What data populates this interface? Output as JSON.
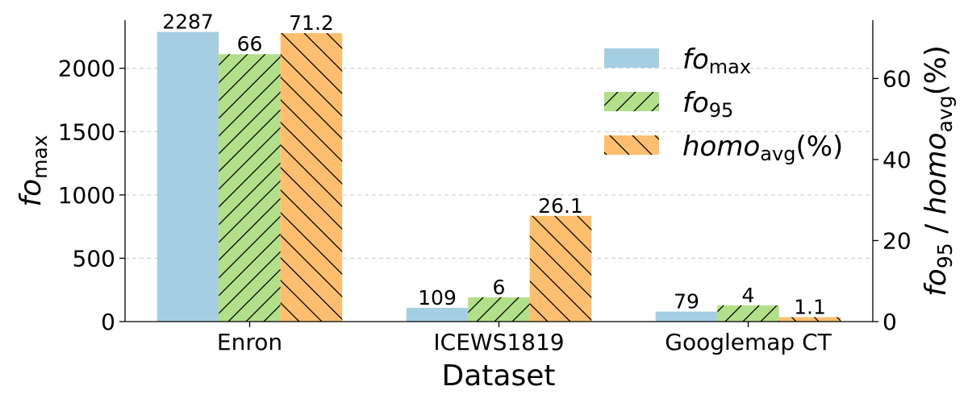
{
  "chart_data": {
    "type": "bar",
    "categories": [
      "Enron",
      "ICEWS1819",
      "Googlemap CT"
    ],
    "xlabel": "Dataset",
    "ylabel_left": {
      "main": "fo",
      "sub": "max"
    },
    "ylabel_right": {
      "part1": "fo",
      "sub1": "95",
      "mid": " / ",
      "part2": "homo",
      "sub2": "avg",
      "tail": "(%)"
    },
    "ylim_left": [
      0,
      2380
    ],
    "ylim_right": [
      0,
      74.4
    ],
    "yticks_left": [
      0,
      500,
      1000,
      1500,
      2000
    ],
    "yticks_right": [
      0,
      20,
      40,
      60
    ],
    "grid": "horizontal-dashed",
    "legend_position": "top-right",
    "series": [
      {
        "name_main": "fo",
        "name_sub": "max",
        "name_tail": "",
        "axis": "left",
        "color": "#a6cee3",
        "hatch": "none",
        "values": [
          2287,
          109,
          79
        ],
        "labels": [
          "2287",
          "109",
          "79"
        ]
      },
      {
        "name_main": "fo",
        "name_sub": "95",
        "name_tail": "",
        "axis": "right",
        "color": "#b2df8a",
        "hatch": "forward",
        "values": [
          66,
          6,
          4
        ],
        "labels": [
          "66",
          "6",
          "4"
        ]
      },
      {
        "name_main": "homo",
        "name_sub": "avg",
        "name_tail": "(%)",
        "axis": "right",
        "color": "#fdbf6f",
        "hatch": "backward",
        "values": [
          71.2,
          26.1,
          1.1
        ],
        "labels": [
          "71.2",
          "26.1",
          "1.1"
        ]
      }
    ]
  }
}
